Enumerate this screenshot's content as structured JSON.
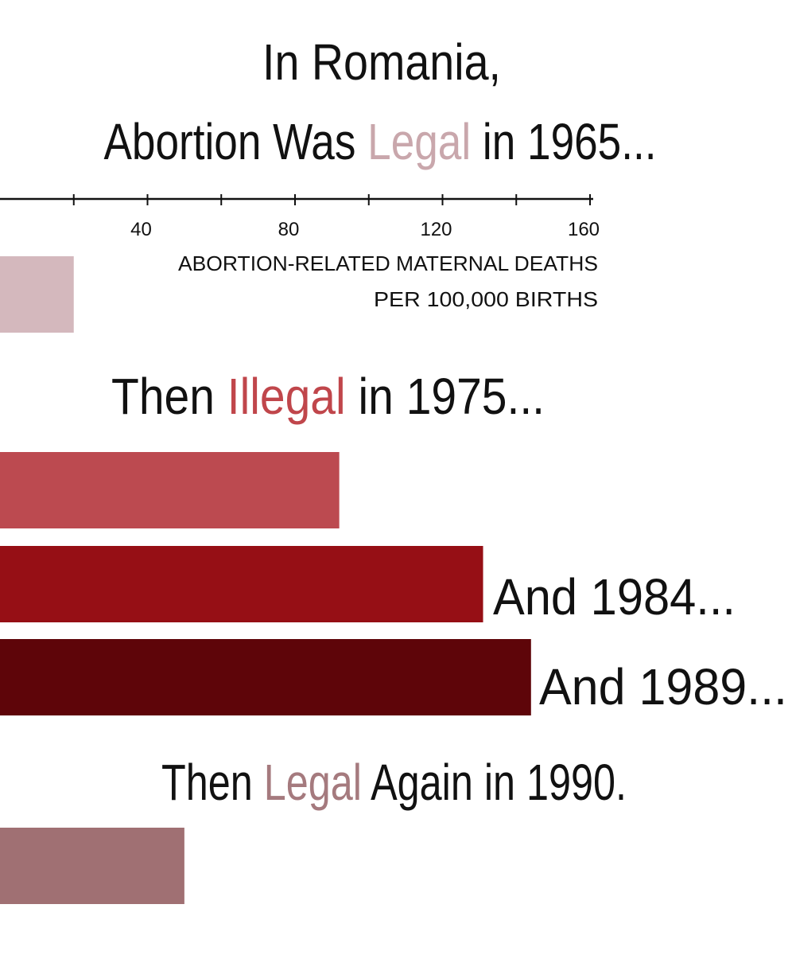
{
  "chart_data": {
    "type": "bar",
    "orientation": "horizontal",
    "annotations": [
      [
        {
          "text": "In Romania,"
        }
      ],
      [
        {
          "text": "Abortion Was "
        },
        {
          "text": "Legal",
          "color": "#c9a7ac"
        },
        {
          "text": " in 1965..."
        }
      ],
      [
        {
          "text": "Then "
        },
        {
          "text": "Illegal",
          "color": "#c0464b"
        },
        {
          "text": " in 1975..."
        }
      ],
      [
        {
          "text": "And 1984..."
        }
      ],
      [
        {
          "text": "And 1989..."
        }
      ],
      [
        {
          "text": "Then "
        },
        {
          "text": "Legal",
          "color": "#a57a7e"
        },
        {
          "text": " Again in 1990."
        }
      ]
    ],
    "x_label": [
      "ABORTION-RELATED MATERNAL DEATHS",
      "PER 100,000 BIRTHS"
    ],
    "values": [
      20,
      92,
      131,
      144,
      50
    ],
    "colors": [
      "#d4b8bd",
      "#bc4a50",
      "#960f15",
      "#5e0509",
      "#a07073"
    ],
    "xlim": [
      0,
      160
    ],
    "xticks": [
      40,
      80,
      120,
      160
    ],
    "minor_xticks": [
      20,
      60,
      100,
      140
    ]
  }
}
